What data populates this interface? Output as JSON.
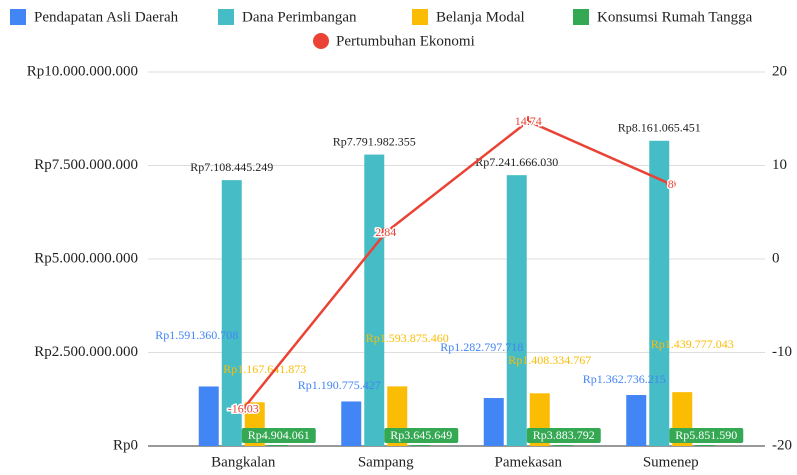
{
  "chart_data": {
    "type": "bar_line",
    "categories": [
      "Bangkalan",
      "Sampang",
      "Pamekasan",
      "Sumenep"
    ],
    "series": [
      {
        "name": "Pendapatan Asli Daerah",
        "color": "#4285f4",
        "type": "bar",
        "values": [
          1591360708,
          1190775427,
          1282797718,
          1362736215
        ],
        "value_labels": [
          "Rp1.591.360.708",
          "Rp1.190.775.427",
          "Rp1.282.797.718",
          "Rp1.362.736.215"
        ]
      },
      {
        "name": "Dana Perimbangan",
        "color": "#46bdc6",
        "type": "bar",
        "values": [
          7108445249,
          7791982355,
          7241666030,
          8161065451
        ],
        "value_labels": [
          "Rp7.108.445.249",
          "Rp7.791.982.355",
          "Rp7.241.666.030",
          "Rp8.161.065.451"
        ]
      },
      {
        "name": "Belanja Modal",
        "color": "#fbbc04",
        "type": "bar",
        "values": [
          1167641873,
          1593875460,
          1408334767,
          1439777043
        ],
        "value_labels": [
          "Rp1.167.641.873",
          "Rp1.593.875.460",
          "Rp1.408.334.767",
          "Rp1.439.777.043"
        ]
      },
      {
        "name": "Konsumsi Rumah Tangga",
        "color": "#34a853",
        "type": "bar",
        "values": [
          4904061,
          3645649,
          3883792,
          5851590
        ],
        "value_labels": [
          "Rp4.904.061",
          "Rp3.645.649",
          "Rp3.883.792",
          "Rp5.851.590"
        ]
      },
      {
        "name": "Pertumbuhan Ekonomi",
        "color": "#ea4335",
        "type": "line",
        "axis": "y2",
        "values": [
          -16.03,
          2.84,
          14.74,
          8
        ]
      }
    ],
    "ylim": [
      0,
      10000000000
    ],
    "yticks": [
      {
        "value": 0,
        "label": "Rp0"
      },
      {
        "value": 2500000000,
        "label": "Rp2.500.000.000"
      },
      {
        "value": 5000000000,
        "label": "Rp5.000.000.000"
      },
      {
        "value": 7500000000,
        "label": "Rp7.500.000.000"
      },
      {
        "value": 10000000000,
        "label": "Rp10.000.000.000"
      }
    ],
    "y2lim": [
      -20,
      20
    ],
    "y2ticks": [
      -20,
      -10,
      0,
      10,
      20
    ],
    "legend": "top"
  }
}
